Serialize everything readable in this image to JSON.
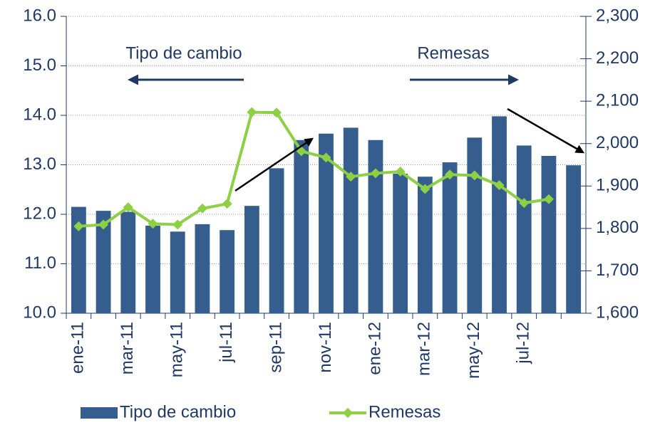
{
  "chart_data": {
    "type": "bar",
    "annotations": [
      "Tipo de cambio",
      "Remesas"
    ],
    "categories": [
      "ene-11",
      null,
      "mar-11",
      null,
      "may-11",
      null,
      "jul-11",
      null,
      "sep-11",
      null,
      "nov-11",
      null,
      "ene-12",
      null,
      "mar-12",
      null,
      "may-12",
      null,
      "jul-12",
      null,
      null
    ],
    "series": [
      {
        "name": "Tipo de cambio",
        "type": "bar",
        "color": "#355e8e",
        "values": [
          12.15,
          12.07,
          12.05,
          11.77,
          11.65,
          11.8,
          11.68,
          12.17,
          12.93,
          13.5,
          13.63,
          13.75,
          13.5,
          12.82,
          12.76,
          13.05,
          13.55,
          13.98,
          13.39,
          13.18,
          12.99
        ]
      },
      {
        "name": "Remesas",
        "type": "line",
        "axis": "y2",
        "color": "#8dcf45",
        "values": [
          1805,
          1809,
          1850,
          1811,
          1809,
          1847,
          1858,
          2074,
          2073,
          1982,
          1967,
          1922,
          1930,
          1934,
          1893,
          1927,
          1925,
          1902,
          1860,
          1869,
          null
        ]
      }
    ],
    "ylim": [
      10,
      16
    ],
    "yticks": [
      {
        "value": 10,
        "label": "10.0"
      },
      {
        "value": 11,
        "label": "11.0"
      },
      {
        "value": 12,
        "label": "12.0"
      },
      {
        "value": 13,
        "label": "13.0"
      },
      {
        "value": 14,
        "label": "14.0"
      },
      {
        "value": 15,
        "label": "15.0"
      },
      {
        "value": 16,
        "label": "16.0"
      }
    ],
    "y2lim": [
      1600,
      2300
    ],
    "y2ticks": [
      {
        "value": 1600,
        "label": "1,600"
      },
      {
        "value": 1700,
        "label": "1,700"
      },
      {
        "value": 1800,
        "label": "1,800"
      },
      {
        "value": 1900,
        "label": "1,900"
      },
      {
        "value": 2000,
        "label": "2,000"
      },
      {
        "value": 2100,
        "label": "2,100"
      },
      {
        "value": 2200,
        "label": "2,200"
      },
      {
        "value": 2300,
        "label": "2,300"
      }
    ],
    "grid": true,
    "legend": "bottom"
  }
}
